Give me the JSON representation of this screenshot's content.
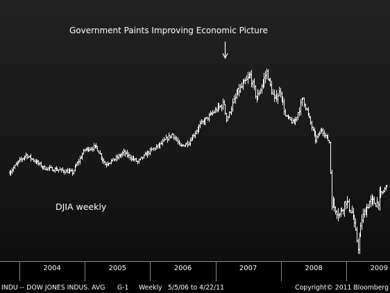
{
  "chart_data": {
    "type": "bar",
    "subtype": "weekly high-low price bars",
    "title": "Government Paints Improving Economic Picture",
    "series": [
      {
        "name": "DJIA weekly",
        "points": [
          [
            "2003-11-07",
            9790
          ],
          [
            "2003-12-19",
            10200
          ],
          [
            "2004-02-06",
            10550
          ],
          [
            "2004-03-26",
            10300
          ],
          [
            "2004-05-14",
            10000
          ],
          [
            "2004-08-13",
            9900
          ],
          [
            "2004-10-22",
            9800
          ],
          [
            "2004-12-31",
            10780
          ],
          [
            "2005-03-04",
            10900
          ],
          [
            "2005-04-22",
            10150
          ],
          [
            "2005-06-24",
            10400
          ],
          [
            "2005-08-05",
            10650
          ],
          [
            "2005-10-21",
            10250
          ],
          [
            "2005-12-30",
            10720
          ],
          [
            "2006-02-17",
            10950
          ],
          [
            "2006-05-05",
            11450
          ],
          [
            "2006-06-16",
            10900
          ],
          [
            "2006-08-04",
            11100
          ],
          [
            "2006-10-06",
            11850
          ],
          [
            "2006-12-29",
            12450
          ],
          [
            "2007-02-16",
            12750
          ],
          [
            "2007-03-02",
            12050
          ],
          [
            "2007-05-04",
            13250
          ],
          [
            "2007-07-13",
            13950
          ],
          [
            "2007-08-17",
            12950
          ],
          [
            "2007-10-12",
            14100
          ],
          [
            "2007-11-23",
            12900
          ],
          [
            "2007-12-28",
            13300
          ],
          [
            "2008-01-25",
            12200
          ],
          [
            "2008-03-14",
            11900
          ],
          [
            "2008-05-02",
            13000
          ],
          [
            "2008-07-11",
            11200
          ],
          [
            "2008-08-15",
            11650
          ],
          [
            "2008-09-26",
            11100
          ],
          [
            "2008-10-10",
            8500
          ],
          [
            "2008-11-21",
            8000
          ],
          [
            "2008-12-26",
            8600
          ],
          [
            "2009-01-30",
            8100
          ],
          [
            "2009-03-06",
            6600
          ],
          [
            "2009-03-27",
            7800
          ],
          [
            "2009-05-08",
            8550
          ],
          [
            "2009-06-19",
            8500
          ],
          [
            "2009-08-14",
            9300
          ]
        ]
      }
    ],
    "x_tick_labels": [
      "2004",
      "2005",
      "2006",
      "2007",
      "2008",
      "2009"
    ],
    "xlim": [
      "2003-09-15",
      "2009-09-01"
    ],
    "ylim": [
      6000,
      16000
    ],
    "arrow_target": "2007-02-23",
    "grid": false,
    "legend": "none",
    "colors": {
      "bars": "#ffffff",
      "text": "#ffffff",
      "axis_line": "#999999"
    }
  },
  "footer": {
    "security": "INDU -- DOW JONES INDUS. AVG",
    "chart_code": "G-1",
    "frequency": "Weekly",
    "date_range": "5/5/06 to 4/22/11",
    "copyright": "Copyright© 2011 Bloomberg"
  }
}
